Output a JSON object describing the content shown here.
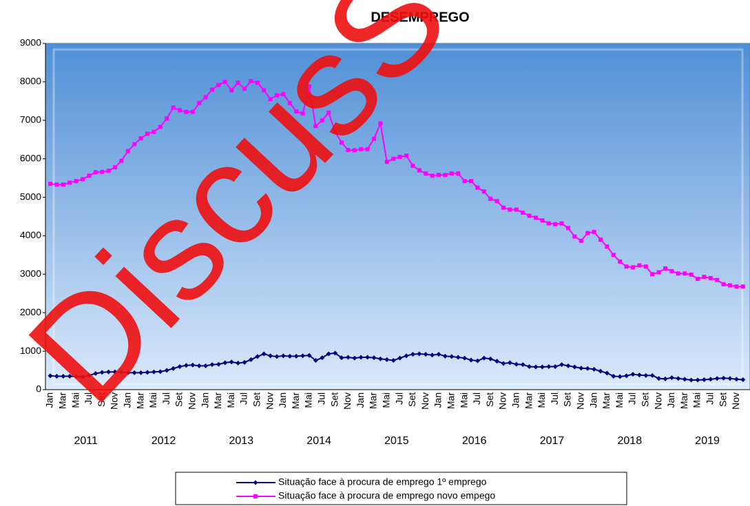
{
  "chart_data": {
    "type": "line",
    "title": "DESEMPREGO",
    "watermark": "DiscusS",
    "categories": [
      "Jan",
      null,
      "Mar",
      null,
      "Mai",
      null,
      "Jul",
      null,
      "Set",
      null,
      "Nov",
      null,
      "Jan",
      null,
      "Mar",
      null,
      "Mai",
      null,
      "Jul",
      null,
      "Set",
      null,
      "Nov",
      null,
      "Jan",
      null,
      "Mar",
      null,
      "Mai",
      null,
      "Jul",
      null,
      "Set",
      null,
      "Nov",
      null,
      "Jan",
      null,
      "Mar",
      null,
      "Mai",
      null,
      "Jul",
      null,
      "Set",
      null,
      "Nov",
      null,
      "Jan",
      null,
      "Mar",
      null,
      "Mai",
      null,
      "Jul",
      null,
      "Set",
      null,
      "Nov",
      null,
      "Jan",
      null,
      "Mar",
      null,
      "Mai",
      null,
      "Jul",
      null,
      "Set",
      null,
      "Nov",
      null,
      "Jan",
      null,
      "Mar",
      null,
      "Mai",
      null,
      "Jul",
      null,
      "Set",
      null,
      "Nov",
      null,
      "Jan",
      null,
      "Mar",
      null,
      "Mai",
      null,
      "Jul",
      null,
      "Set",
      null,
      "Nov",
      null,
      "Jan",
      null,
      "Mar",
      null,
      "Mai",
      null,
      "Jul",
      null,
      "Set",
      null,
      "Nov",
      null
    ],
    "year_groups": [
      "2011",
      "2012",
      "2013",
      "2014",
      "2015",
      "2016",
      "2017",
      "2018",
      "2019"
    ],
    "series": [
      {
        "name": "Situação face à procura de emprego 1º emprego",
        "color": "#000080",
        "marker": "diamond",
        "values": [
          360,
          350,
          350,
          350,
          340,
          330,
          370,
          420,
          450,
          460,
          460,
          450,
          440,
          440,
          440,
          450,
          460,
          470,
          500,
          550,
          600,
          630,
          640,
          620,
          620,
          650,
          660,
          700,
          720,
          690,
          710,
          780,
          860,
          930,
          880,
          860,
          880,
          870,
          870,
          880,
          890,
          760,
          830,
          930,
          950,
          830,
          840,
          820,
          840,
          840,
          830,
          800,
          780,
          760,
          820,
          880,
          920,
          930,
          920,
          900,
          920,
          870,
          860,
          840,
          820,
          770,
          750,
          820,
          800,
          740,
          680,
          700,
          660,
          650,
          600,
          590,
          590,
          600,
          600,
          650,
          620,
          590,
          560,
          550,
          530,
          480,
          430,
          350,
          340,
          360,
          400,
          380,
          370,
          370,
          290,
          280,
          310,
          290,
          270,
          250,
          250,
          260,
          270,
          290,
          300,
          290,
          270,
          260
        ]
      },
      {
        "name": "Situação face à procura de emprego novo empego",
        "color": "#ff00ff",
        "marker": "square",
        "values": [
          5350,
          5330,
          5330,
          5380,
          5420,
          5470,
          5560,
          5650,
          5660,
          5690,
          5780,
          5950,
          6200,
          6380,
          6530,
          6650,
          6700,
          6830,
          7050,
          7330,
          7260,
          7220,
          7220,
          7450,
          7600,
          7800,
          7920,
          8000,
          7780,
          7980,
          7820,
          8020,
          7980,
          7780,
          7550,
          7650,
          7680,
          7450,
          7230,
          7180,
          7880,
          6850,
          7000,
          7200,
          6700,
          6420,
          6230,
          6220,
          6250,
          6250,
          6520,
          6920,
          5920,
          6000,
          6050,
          6080,
          5820,
          5700,
          5620,
          5560,
          5580,
          5580,
          5620,
          5620,
          5420,
          5420,
          5250,
          5150,
          4960,
          4900,
          4730,
          4680,
          4680,
          4600,
          4520,
          4470,
          4400,
          4320,
          4300,
          4320,
          4200,
          3980,
          3870,
          4070,
          4100,
          3900,
          3720,
          3500,
          3330,
          3200,
          3180,
          3230,
          3200,
          3000,
          3050,
          3150,
          3080,
          3020,
          3020,
          2990,
          2880,
          2930,
          2900,
          2850,
          2740,
          2710,
          2680,
          2680
        ]
      }
    ],
    "ylim": [
      0,
      9000
    ],
    "yticks": [
      0,
      1000,
      2000,
      3000,
      4000,
      5000,
      6000,
      7000,
      8000,
      9000
    ],
    "legend": "bottom"
  }
}
